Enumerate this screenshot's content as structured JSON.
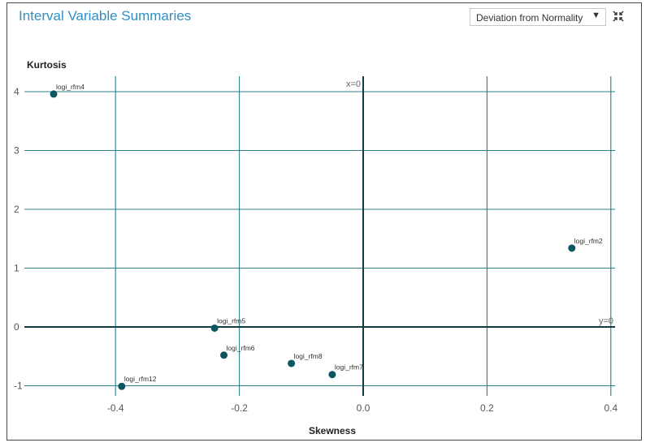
{
  "panel": {
    "title": "Interval Variable Summaries",
    "dropdown_value": "Deviation from Normality",
    "collapse_icon": "collapse-arrows-icon"
  },
  "colors": {
    "title": "#2f8fc4",
    "grid": "#2e7f86",
    "reference_line": "#123c40",
    "point": "#0c5660"
  },
  "chart_data": {
    "type": "scatter",
    "title": "",
    "xlabel": "Skewness",
    "ylabel": "Kurtosis",
    "xlim": [
      -0.5,
      0.4
    ],
    "ylim": [
      -1,
      4
    ],
    "xticks": [
      -0.4,
      -0.2,
      0.0,
      0.2,
      0.4
    ],
    "xtick_labels": [
      "-0.4",
      "-0.2",
      "0.0",
      "0.2",
      "0.4"
    ],
    "yticks": [
      -1,
      0,
      1,
      2,
      3,
      4
    ],
    "ytick_labels": [
      "-1",
      "0",
      "1",
      "2",
      "3",
      "4"
    ],
    "grid": true,
    "reference_lines": [
      {
        "axis": "x",
        "value": 0,
        "label": "x=0"
      },
      {
        "axis": "y",
        "value": 0,
        "label": "y=0"
      }
    ],
    "points": [
      {
        "label": "logi_rfm4",
        "x": -0.5,
        "y": 3.96
      },
      {
        "label": "logi_rfm2",
        "x": 0.337,
        "y": 1.34
      },
      {
        "label": "logi_rfm5",
        "x": -0.24,
        "y": -0.02
      },
      {
        "label": "logi_rfm6",
        "x": -0.225,
        "y": -0.48
      },
      {
        "label": "logi_rfm8",
        "x": -0.116,
        "y": -0.62
      },
      {
        "label": "logi_rfm7",
        "x": -0.05,
        "y": -0.81
      },
      {
        "label": "logi_rfm12",
        "x": -0.39,
        "y": -1.01
      }
    ]
  }
}
